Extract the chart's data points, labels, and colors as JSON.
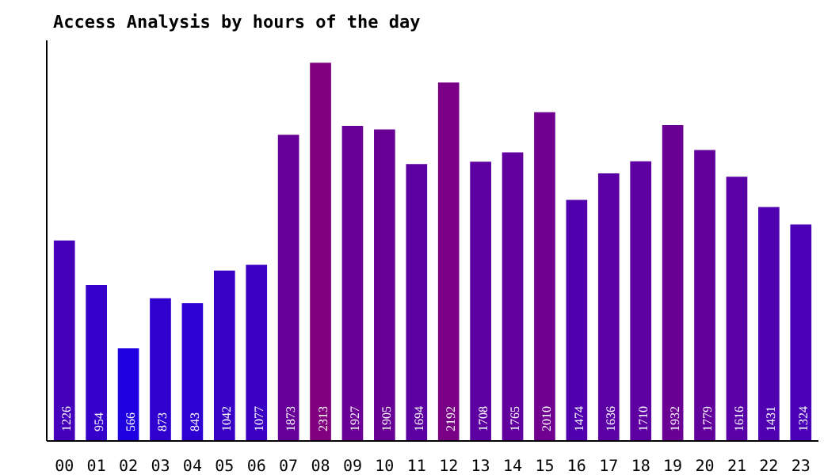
{
  "chart_data": {
    "type": "bar",
    "title": "Access Analysis by hours of the day",
    "categories": [
      "00",
      "01",
      "02",
      "03",
      "04",
      "05",
      "06",
      "07",
      "08",
      "09",
      "10",
      "11",
      "12",
      "13",
      "14",
      "15",
      "16",
      "17",
      "18",
      "19",
      "20",
      "21",
      "22",
      "23"
    ],
    "values": [
      1226,
      954,
      566,
      873,
      843,
      1042,
      1077,
      1873,
      2313,
      1927,
      1905,
      1694,
      2192,
      1708,
      1765,
      2010,
      1474,
      1636,
      1710,
      1932,
      1779,
      1616,
      1431,
      1324
    ],
    "colors": [
      "#4400bb",
      "#3500ca",
      "#1f00e0",
      "#3000cf",
      "#2e00d1",
      "#3900c6",
      "#3b00c4",
      "#670098",
      "#80007f",
      "#6a0095",
      "#690096",
      "#5d00a2",
      "#790086",
      "#5e00a1",
      "#61009e",
      "#6f0090",
      "#5100ae",
      "#5a00a5",
      "#5e00a1",
      "#6b0094",
      "#62009d",
      "#5900a6",
      "#4f00b0",
      "#4900b6"
    ],
    "ylim": [
      0,
      2450
    ],
    "data_labels": true
  }
}
